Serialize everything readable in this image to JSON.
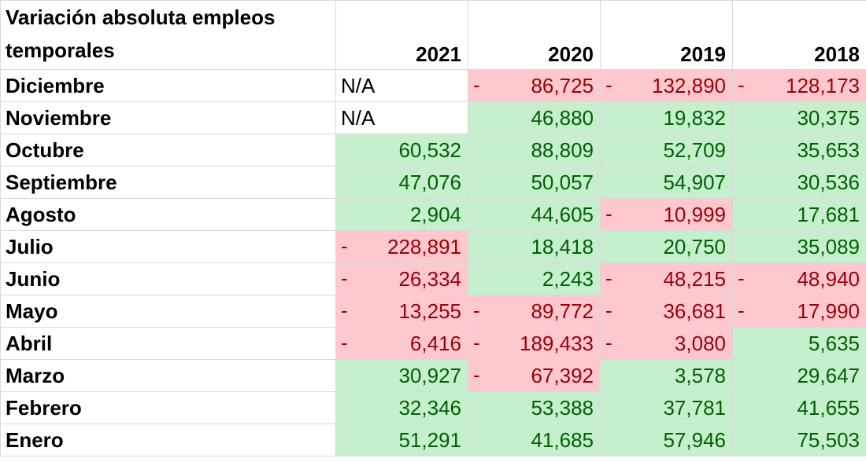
{
  "chart_data": {
    "type": "table",
    "title": "Variación absoluta  empleos temporales",
    "columns": [
      "2021",
      "2020",
      "2019",
      "2018"
    ],
    "rows": [
      {
        "label": "Diciembre",
        "values": [
          null,
          -86725,
          -132890,
          -128173
        ]
      },
      {
        "label": "Noviembre",
        "values": [
          null,
          46880,
          19832,
          30375
        ]
      },
      {
        "label": "Octubre",
        "values": [
          60532,
          88809,
          52709,
          35653
        ]
      },
      {
        "label": "Septiembre",
        "values": [
          47076,
          50057,
          54907,
          30536
        ]
      },
      {
        "label": "Agosto",
        "values": [
          2904,
          44605,
          -10999,
          17681
        ]
      },
      {
        "label": "Julio",
        "values": [
          -228891,
          18418,
          20750,
          35089
        ]
      },
      {
        "label": "Junio",
        "values": [
          -26334,
          2243,
          -48215,
          -48940
        ]
      },
      {
        "label": "Mayo",
        "values": [
          -13255,
          -89772,
          -36681,
          -17990
        ]
      },
      {
        "label": "Abril",
        "values": [
          -6416,
          -189433,
          -3080,
          5635
        ]
      },
      {
        "label": "Marzo",
        "values": [
          30927,
          -67392,
          3578,
          29647
        ]
      },
      {
        "label": "Febrero",
        "values": [
          32346,
          53388,
          37781,
          41655
        ]
      },
      {
        "label": "Enero",
        "values": [
          51291,
          41685,
          57946,
          75503
        ]
      }
    ],
    "missing_label": "N/A",
    "negative_sign": "-",
    "colors": {
      "positive_fill": "#c6efce",
      "positive_text": "#006100",
      "negative_fill": "#ffc7ce",
      "negative_text": "#9c0006"
    }
  }
}
